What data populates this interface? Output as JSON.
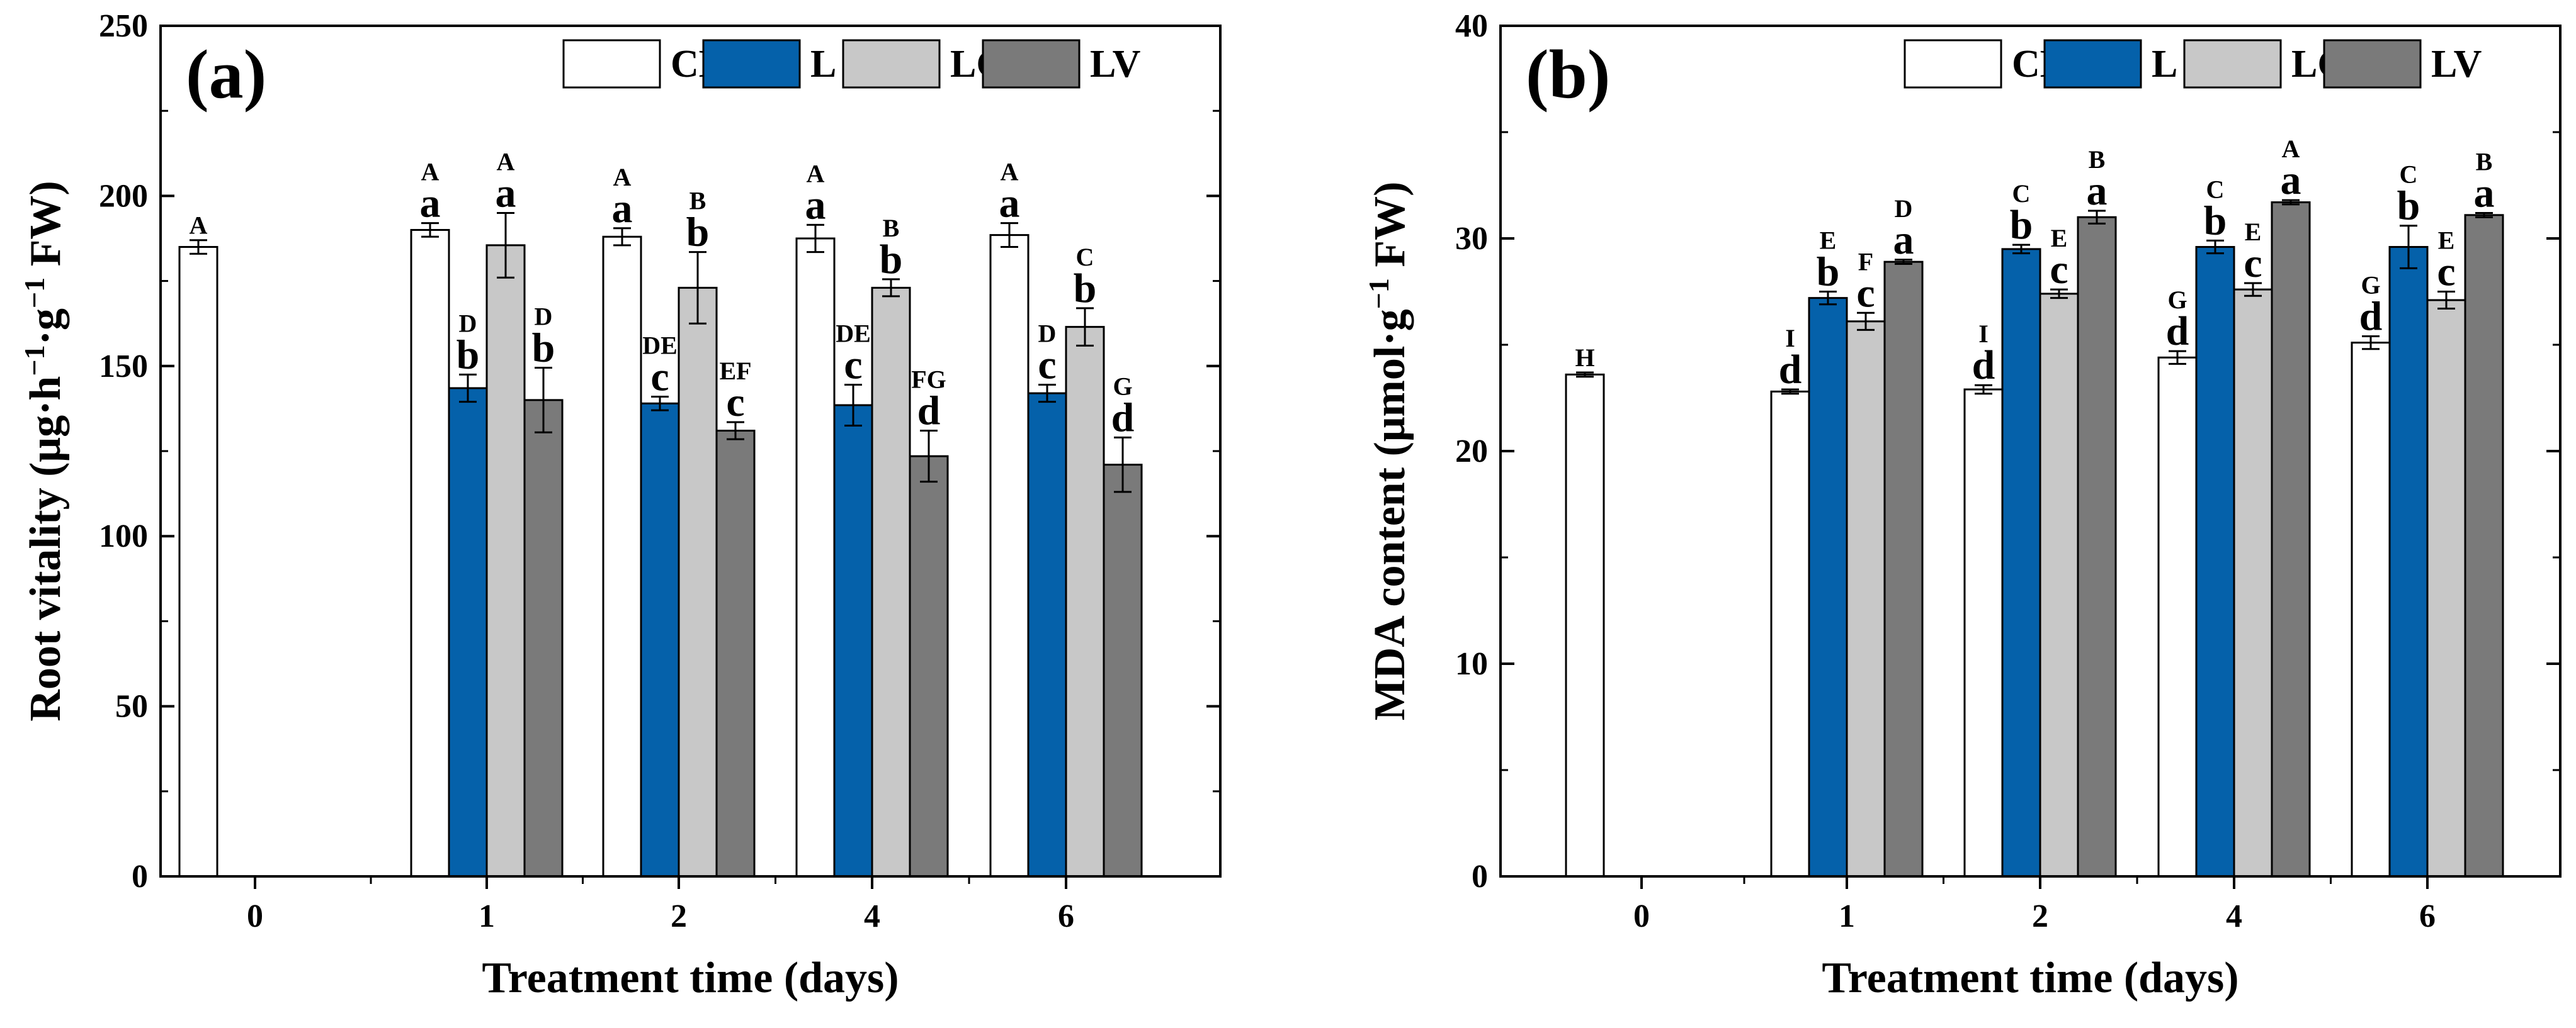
{
  "chart_data": [
    {
      "type": "bar",
      "panel_label": "(a)",
      "categories": [
        "0",
        "1",
        "2",
        "4",
        "6"
      ],
      "legend": [
        "CK",
        "L",
        "LG",
        "LV"
      ],
      "colors": {
        "CK": "#ffffff",
        "L": "#0561aa",
        "LG": "#c8c8c8",
        "LV": "#7a7a7a"
      },
      "xlabel": "Treatment time (days)",
      "ylabel_parts": {
        "main": "Root vitality (μg·h",
        "sup1": "−1",
        "mid": "·g",
        "sup2": "−1",
        "end": " FW)"
      },
      "ylim": [
        0,
        250
      ],
      "yticks": [
        "0",
        "50",
        "100",
        "150",
        "200",
        "250"
      ],
      "series": [
        {
          "name": "CK",
          "values": [
            185,
            190,
            188,
            187.5,
            188.5
          ],
          "errors": [
            2,
            2,
            2.5,
            4,
            3.5
          ],
          "upper": [
            "A",
            "A",
            "A",
            "A",
            "A"
          ],
          "lower": [
            "",
            "a",
            "a",
            "a",
            "a"
          ]
        },
        {
          "name": "L",
          "values": [
            null,
            143.5,
            139,
            138.5,
            142
          ],
          "errors": [
            null,
            4,
            2,
            6,
            2.5
          ],
          "upper": [
            "",
            "D",
            "DE",
            "DE",
            "D"
          ],
          "lower": [
            "",
            "b",
            "c",
            "c",
            "c"
          ]
        },
        {
          "name": "LG",
          "values": [
            null,
            185.5,
            173,
            173,
            161.5
          ],
          "errors": [
            null,
            9.5,
            10.5,
            2.5,
            5.5
          ],
          "upper": [
            "",
            "A",
            "B",
            "B",
            "C"
          ],
          "lower": [
            "",
            "a",
            "b",
            "b",
            "b"
          ]
        },
        {
          "name": "LV",
          "values": [
            null,
            140,
            131,
            123.5,
            121
          ],
          "errors": [
            null,
            9.5,
            2.5,
            7.5,
            8
          ],
          "upper": [
            "",
            "D",
            "EF",
            "FG",
            "G"
          ],
          "lower": [
            "",
            "b",
            "c",
            "d",
            "d"
          ]
        }
      ]
    },
    {
      "type": "bar",
      "panel_label": "(b)",
      "categories": [
        "0",
        "1",
        "2",
        "4",
        "6"
      ],
      "legend": [
        "CK",
        "L",
        "LG",
        "LV"
      ],
      "colors": {
        "CK": "#ffffff",
        "L": "#0561aa",
        "LG": "#c8c8c8",
        "LV": "#7a7a7a"
      },
      "xlabel": "Treatment time (days)",
      "ylabel_parts": {
        "main": "MDA content (μmol·g",
        "sup1": "−1",
        "mid": "",
        "sup2": "",
        "end": " FW)"
      },
      "ylim": [
        0,
        40
      ],
      "yticks": [
        "0",
        "10",
        "20",
        "30",
        "40"
      ],
      "series": [
        {
          "name": "CK",
          "values": [
            23.6,
            22.8,
            22.9,
            24.4,
            25.1
          ],
          "errors": [
            0.1,
            0.1,
            0.2,
            0.3,
            0.3
          ],
          "upper": [
            "H",
            "I",
            "I",
            "G",
            "G"
          ],
          "lower": [
            "",
            "d",
            "d",
            "d",
            "d"
          ]
        },
        {
          "name": "L",
          "values": [
            null,
            27.2,
            29.5,
            29.6,
            29.6
          ],
          "errors": [
            null,
            0.3,
            0.2,
            0.3,
            1.0
          ],
          "upper": [
            "",
            "E",
            "C",
            "C",
            "C"
          ],
          "lower": [
            "",
            "b",
            "b",
            "b",
            "b"
          ]
        },
        {
          "name": "LG",
          "values": [
            null,
            26.1,
            27.4,
            27.6,
            27.1
          ],
          "errors": [
            null,
            0.4,
            0.2,
            0.3,
            0.4
          ],
          "upper": [
            "",
            "F",
            "E",
            "E",
            "E"
          ],
          "lower": [
            "",
            "c",
            "c",
            "c",
            "c"
          ]
        },
        {
          "name": "LV",
          "values": [
            null,
            28.9,
            31.0,
            31.7,
            31.1
          ],
          "errors": [
            null,
            0.1,
            0.3,
            0.1,
            0.1
          ],
          "upper": [
            "",
            "D",
            "B",
            "A",
            "B"
          ],
          "lower": [
            "",
            "a",
            "a",
            "a",
            "a"
          ]
        }
      ]
    }
  ]
}
